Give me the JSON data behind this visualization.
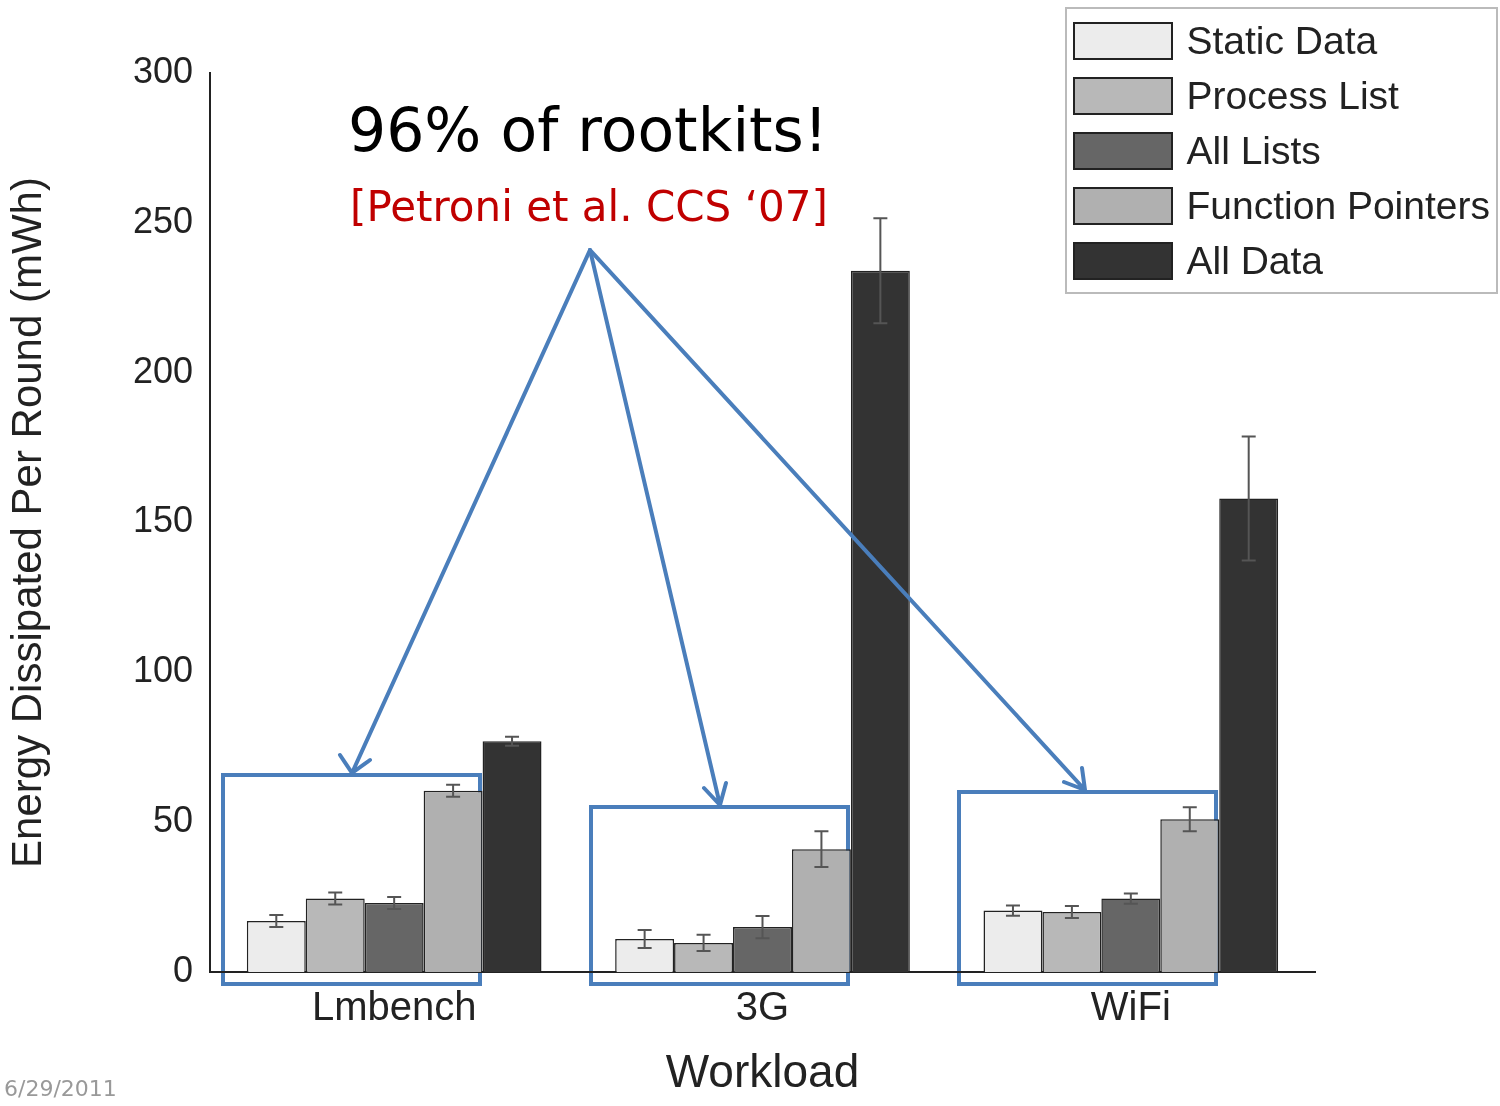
{
  "chart_data": {
    "type": "bar",
    "xlabel": "Workload",
    "ylabel": "Energy Dissipated Per Round (mWh)",
    "categories": [
      "Lmbench",
      "3G",
      "WiFi"
    ],
    "series": [
      {
        "name": "Static Data",
        "color": "#ececec",
        "values": [
          17,
          11,
          20.5
        ],
        "errors": [
          2,
          3,
          1.7
        ]
      },
      {
        "name": "Process List",
        "color": "#b8b8b8",
        "values": [
          24.5,
          9.7,
          20
        ],
        "errors": [
          2,
          2.7,
          2
        ]
      },
      {
        "name": "All Lists",
        "color": "#666666",
        "values": [
          23,
          15,
          24.5
        ],
        "errors": [
          2,
          3.7,
          1.7
        ]
      },
      {
        "name": "Function Pointers",
        "color": "#b0b0b0",
        "values": [
          60.5,
          41,
          51
        ],
        "errors": [
          2,
          6,
          4
        ]
      },
      {
        "name": "All Data",
        "color": "#333333",
        "values": [
          77,
          234,
          158
        ],
        "errors": [
          1.5,
          17.5,
          20.7
        ]
      }
    ],
    "ylim": [
      0,
      300
    ],
    "yticks": [
      0,
      50,
      100,
      150,
      200,
      250,
      300
    ],
    "legend": "top right",
    "annotations": [
      "96% of rootkits!",
      "[Petroni et al. CCS ‘07]",
      "6/29/2011"
    ]
  }
}
